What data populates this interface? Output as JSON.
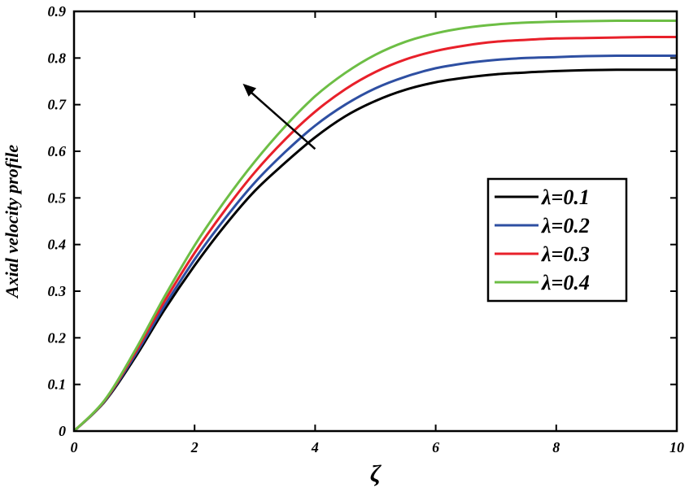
{
  "chart_data": {
    "type": "line",
    "xlabel": "ζ",
    "ylabel": "Axial velocity profile",
    "xlim": [
      0,
      10
    ],
    "ylim": [
      0,
      0.9
    ],
    "xticks": [
      0,
      2,
      4,
      6,
      8,
      10
    ],
    "yticks": [
      0,
      0.1,
      0.2,
      0.3,
      0.4,
      0.5,
      0.6,
      0.7,
      0.8,
      0.9
    ],
    "grid": false,
    "legend_position": "right-center",
    "annotation": "arrow pointing toward increasing λ",
    "series": [
      {
        "name": "λ=0.1",
        "color": "#000000",
        "x": [
          0,
          0.5,
          1,
          1.5,
          2,
          2.5,
          3,
          3.5,
          4,
          4.5,
          5,
          5.5,
          6,
          6.5,
          7,
          7.5,
          8,
          8.5,
          9,
          9.5,
          10
        ],
        "y": [
          0,
          0.062,
          0.155,
          0.26,
          0.355,
          0.44,
          0.515,
          0.575,
          0.63,
          0.675,
          0.708,
          0.732,
          0.748,
          0.758,
          0.765,
          0.769,
          0.772,
          0.774,
          0.775,
          0.775,
          0.775
        ]
      },
      {
        "name": "λ=0.2",
        "color": "#2e4fa2",
        "x": [
          0,
          0.5,
          1,
          1.5,
          2,
          2.5,
          3,
          3.5,
          4,
          4.5,
          5,
          5.5,
          6,
          6.5,
          7,
          7.5,
          8,
          8.5,
          9,
          9.5,
          10
        ],
        "y": [
          0,
          0.063,
          0.16,
          0.268,
          0.368,
          0.455,
          0.533,
          0.598,
          0.655,
          0.7,
          0.735,
          0.76,
          0.778,
          0.789,
          0.796,
          0.8,
          0.802,
          0.804,
          0.805,
          0.805,
          0.805
        ]
      },
      {
        "name": "λ=0.3",
        "color": "#e8202a",
        "x": [
          0,
          0.5,
          1,
          1.5,
          2,
          2.5,
          3,
          3.5,
          4,
          4.5,
          5,
          5.5,
          6,
          6.5,
          7,
          7.5,
          8,
          8.5,
          9,
          9.5,
          10
        ],
        "y": [
          0,
          0.064,
          0.165,
          0.278,
          0.382,
          0.473,
          0.555,
          0.625,
          0.685,
          0.733,
          0.77,
          0.797,
          0.815,
          0.827,
          0.835,
          0.839,
          0.842,
          0.843,
          0.844,
          0.845,
          0.845
        ]
      },
      {
        "name": "λ=0.4",
        "color": "#6dbe45",
        "x": [
          0,
          0.5,
          1,
          1.5,
          2,
          2.5,
          3,
          3.5,
          4,
          4.5,
          5,
          5.5,
          6,
          6.5,
          7,
          7.5,
          8,
          8.5,
          9,
          9.5,
          10
        ],
        "y": [
          0,
          0.065,
          0.17,
          0.288,
          0.398,
          0.493,
          0.578,
          0.653,
          0.718,
          0.768,
          0.807,
          0.835,
          0.853,
          0.865,
          0.872,
          0.876,
          0.878,
          0.879,
          0.88,
          0.88,
          0.88
        ]
      }
    ]
  }
}
